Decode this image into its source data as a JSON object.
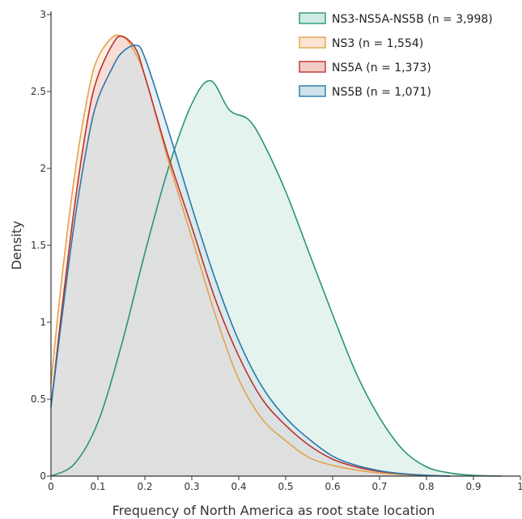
{
  "chart_data": {
    "type": "area",
    "xlabel": "Frequency of North America as root state location",
    "ylabel": "Density",
    "xlim": [
      0,
      1
    ],
    "ylim": [
      0,
      3
    ],
    "xticks": [
      "0",
      "0.1",
      "0.2",
      "0.3",
      "0.4",
      "0.5",
      "0.6",
      "0.7",
      "0.8",
      "0.9",
      "1"
    ],
    "yticks": [
      "0",
      "0.5",
      "1",
      "1.5",
      "2",
      "2.5",
      "3"
    ],
    "grid": false,
    "legend_position": "top-right",
    "series": [
      {
        "name": "NS3-NS5A-NS5B (n = 3,998)",
        "color": "#2a9478",
        "fill": "#cfeae2",
        "x": [
          0,
          0.05,
          0.1,
          0.15,
          0.2,
          0.25,
          0.3,
          0.34,
          0.38,
          0.42,
          0.45,
          0.5,
          0.55,
          0.6,
          0.65,
          0.7,
          0.75,
          0.8,
          0.85,
          0.9,
          0.96
        ],
        "y": [
          0.0,
          0.08,
          0.35,
          0.85,
          1.45,
          2.0,
          2.42,
          2.57,
          2.38,
          2.32,
          2.18,
          1.85,
          1.45,
          1.05,
          0.67,
          0.38,
          0.17,
          0.06,
          0.02,
          0.005,
          0.0
        ]
      },
      {
        "name": "NS3 (n = 1,554)",
        "color": "#e3a24b",
        "fill": "#fbe4d2",
        "x": [
          0,
          0.02,
          0.05,
          0.08,
          0.1,
          0.13,
          0.15,
          0.17,
          0.2,
          0.25,
          0.3,
          0.35,
          0.4,
          0.45,
          0.5,
          0.55,
          0.6,
          0.65,
          0.7,
          0.75,
          0.8,
          0.85
        ],
        "y": [
          0.6,
          1.2,
          1.95,
          2.5,
          2.72,
          2.85,
          2.86,
          2.8,
          2.6,
          2.05,
          1.55,
          1.05,
          0.63,
          0.37,
          0.23,
          0.12,
          0.07,
          0.04,
          0.02,
          0.01,
          0.003,
          0.0
        ]
      },
      {
        "name": "NS5A (n = 1,373)",
        "color": "#c0302b",
        "fill": "#f2cdc8",
        "x": [
          0,
          0.02,
          0.05,
          0.08,
          0.1,
          0.13,
          0.15,
          0.18,
          0.2,
          0.25,
          0.3,
          0.35,
          0.4,
          0.45,
          0.5,
          0.55,
          0.6,
          0.65,
          0.7,
          0.75,
          0.8,
          0.85
        ],
        "y": [
          0.45,
          1.0,
          1.75,
          2.35,
          2.6,
          2.8,
          2.86,
          2.78,
          2.6,
          2.08,
          1.62,
          1.15,
          0.78,
          0.5,
          0.33,
          0.2,
          0.11,
          0.06,
          0.03,
          0.015,
          0.005,
          0.0
        ]
      },
      {
        "name": "NS5B (n = 1,071)",
        "color": "#2a78a8",
        "fill": "#cde2ea",
        "x": [
          0,
          0.02,
          0.05,
          0.08,
          0.1,
          0.13,
          0.15,
          0.18,
          0.2,
          0.25,
          0.3,
          0.35,
          0.4,
          0.45,
          0.5,
          0.55,
          0.6,
          0.65,
          0.7,
          0.75,
          0.8,
          0.85
        ],
        "y": [
          0.45,
          0.95,
          1.65,
          2.2,
          2.45,
          2.65,
          2.75,
          2.8,
          2.72,
          2.25,
          1.75,
          1.28,
          0.88,
          0.58,
          0.38,
          0.24,
          0.13,
          0.07,
          0.035,
          0.015,
          0.005,
          0.0
        ]
      }
    ]
  }
}
